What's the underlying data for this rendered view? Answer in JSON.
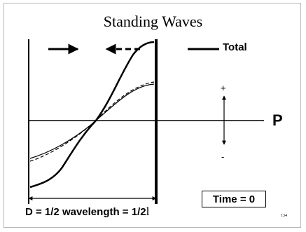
{
  "slide": {
    "title": "Standing Waves",
    "legend_total": "Total",
    "axis_label": "P",
    "plus_sign": "+",
    "minus_sign": "-",
    "time_label": "Time = 0",
    "distance_text": "D = 1/2 wavelength = 1/2",
    "distance_symbol": "l",
    "slide_number": "134"
  },
  "colors": {
    "ink": "#000000",
    "background": "#ffffff"
  }
}
